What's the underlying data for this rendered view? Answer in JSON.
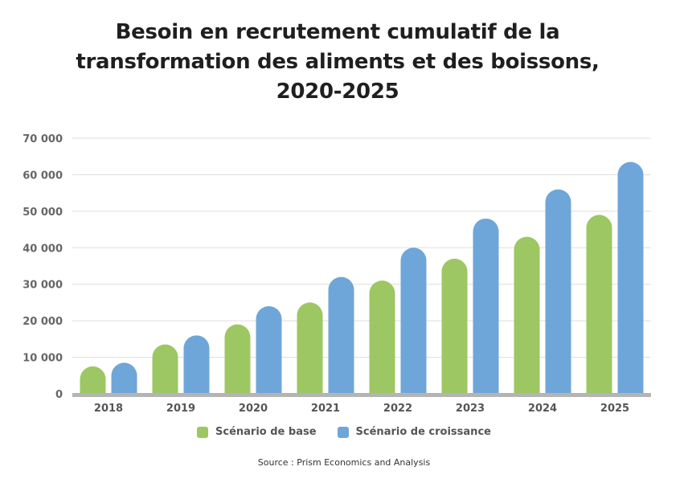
{
  "title_lines": [
    "Besoin en recrutement cumulatif de la",
    "transformation des aliments et des boissons,",
    "2020-2025"
  ],
  "source": "Source : Prism Economics and Analysis",
  "chart_data": {
    "type": "bar",
    "title": "Besoin en recrutement cumulatif de la transformation des aliments et des boissons, 2020-2025",
    "categories": [
      "2018",
      "2019",
      "2020",
      "2021",
      "2022",
      "2023",
      "2024",
      "2025"
    ],
    "series": [
      {
        "name": "Scénario de base",
        "color": "#9dc762",
        "values": [
          7500,
          13500,
          19000,
          25000,
          31000,
          37000,
          43000,
          49000
        ]
      },
      {
        "name": "Scénario de croissance",
        "color": "#6fa6d9",
        "values": [
          8500,
          16000,
          24000,
          32000,
          40000,
          48000,
          56000,
          63500
        ]
      }
    ],
    "yticks": [
      "0",
      "10 000",
      "20 000",
      "30 000",
      "40 000",
      "50 000",
      "60 000",
      "70 000"
    ],
    "ytick_values": [
      0,
      10000,
      20000,
      30000,
      40000,
      50000,
      60000,
      70000
    ],
    "ylim": [
      0,
      70000
    ],
    "grid": true,
    "legend_position": "bottom-center"
  }
}
